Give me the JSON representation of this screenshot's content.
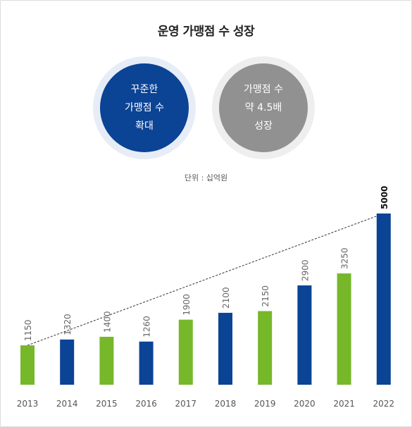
{
  "title": "운영 가맹점 수 성장",
  "badges": [
    {
      "lines": [
        "꾸준한",
        "가맹점 수",
        "확대"
      ],
      "color": "#0b4395"
    },
    {
      "lines": [
        "가맹점 수",
        "약 4.5배",
        "성장"
      ],
      "color": "#919191"
    }
  ],
  "unit_label": "단위 : 십억원",
  "colors": {
    "green": "#76b82a",
    "blue": "#0b4395",
    "trend": "#333333"
  },
  "chart_data": {
    "type": "bar",
    "categories": [
      "2013",
      "2014",
      "2015",
      "2016",
      "2017",
      "2018",
      "2019",
      "2020",
      "2021",
      "2022"
    ],
    "values": [
      1150,
      1320,
      1400,
      1260,
      1900,
      2100,
      2150,
      2900,
      3250,
      5000
    ],
    "bar_colors": [
      "green",
      "blue",
      "green",
      "blue",
      "green",
      "blue",
      "green",
      "blue",
      "green",
      "blue"
    ],
    "highlight": "2022",
    "trend_line": {
      "from": "2013",
      "to": "2022",
      "style": "dashed"
    },
    "title": "운영 가맹점 수 성장",
    "xlabel": "",
    "ylabel": "",
    "unit": "단위 : 십억원",
    "ylim": [
      0,
      5000
    ],
    "grid": false
  }
}
